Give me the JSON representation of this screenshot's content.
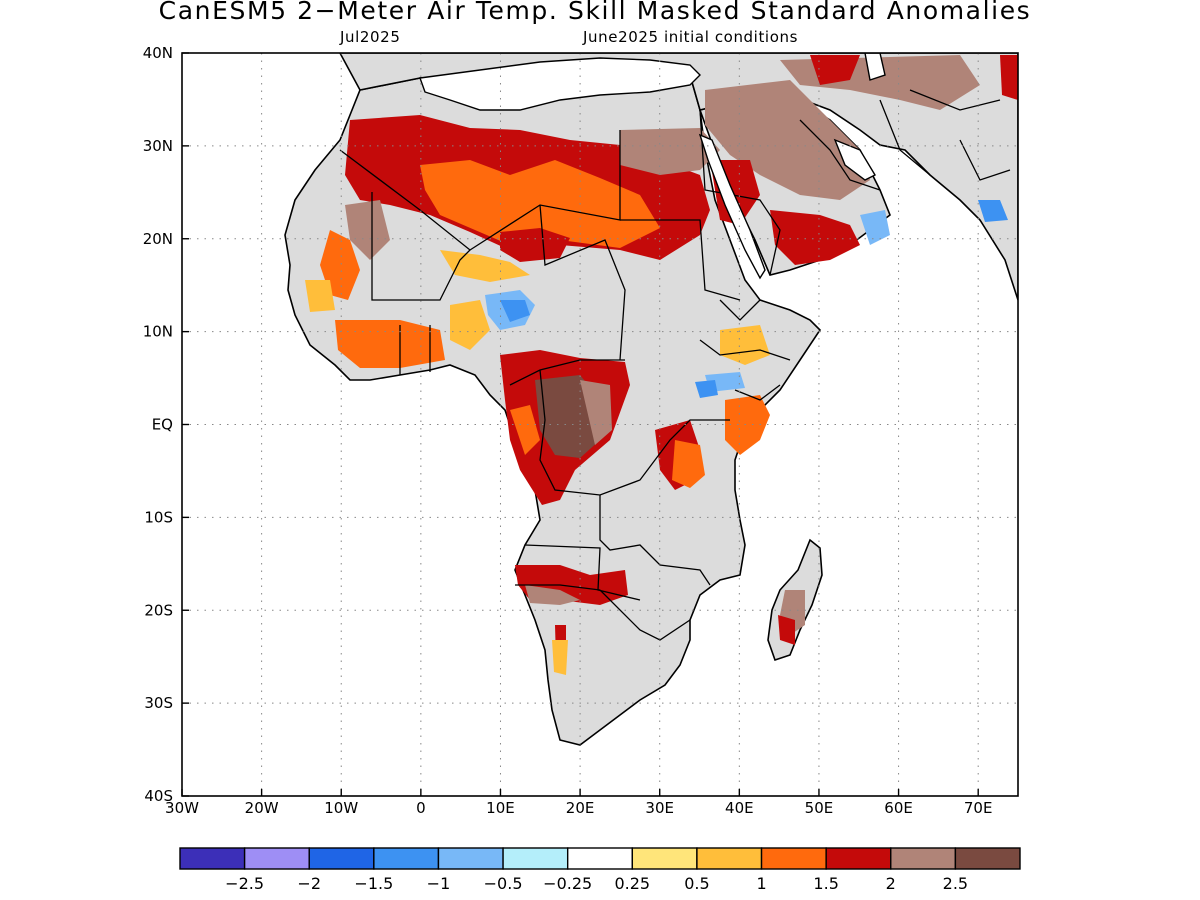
{
  "title": "CanESM5 2−Meter Air Temp. Skill Masked Standard Anomalies",
  "subtitle_left": "Jul2025",
  "subtitle_right": "June2025 initial conditions",
  "axes": {
    "lon_labels": [
      "30W",
      "20W",
      "10W",
      "0",
      "10E",
      "20E",
      "30E",
      "40E",
      "50E",
      "60E",
      "70E"
    ],
    "lat_labels": [
      "40N",
      "30N",
      "20N",
      "10N",
      "EQ",
      "10S",
      "20S",
      "30S",
      "40S"
    ],
    "lon_range": [
      -30,
      75
    ],
    "lat_range": [
      -40,
      40
    ],
    "grid": "dotted"
  },
  "colorbar": {
    "labels": [
      "−2.5",
      "−2",
      "−1.5",
      "−1",
      "−0.5",
      "−0.25",
      "0.25",
      "0.5",
      "1",
      "1.5",
      "2",
      "2.5"
    ],
    "colors": [
      "#3c2fb8",
      "#9e8ef5",
      "#1f65e6",
      "#3d92f2",
      "#78b8f7",
      "#b4eefa",
      "#ffffff",
      "#ffe57a",
      "#ffbe3a",
      "#ff6a0d",
      "#c40a0a",
      "#b08478",
      "#7a4a40"
    ]
  },
  "map_colors": {
    "land_masked": "#dcdcdc",
    "ocean": "#ffffff",
    "coastline": "#000000"
  }
}
